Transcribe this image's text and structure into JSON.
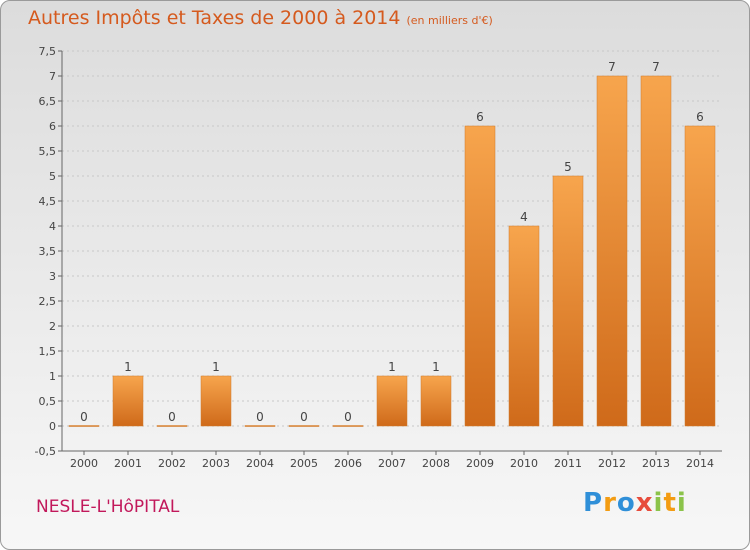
{
  "header": {
    "title": "Autres Impôts et Taxes de 2000 à 2014",
    "unit": "(en milliers d'€)"
  },
  "footer": {
    "commune": "NESLE-L'HôPITAL",
    "logo_letters": [
      "P",
      "r",
      "o",
      "x",
      "i",
      "t",
      "i"
    ],
    "logo_colors": [
      "#2f8fd8",
      "#f39c12",
      "#2f8fd8",
      "#e74c3c",
      "#8bc34a",
      "#f39c12",
      "#8bc34a"
    ]
  },
  "chart_data": {
    "type": "bar",
    "title": "Autres Impôts et Taxes de 2000 à 2014",
    "subtitle": "(en milliers d'€)",
    "categories": [
      "2000",
      "2001",
      "2002",
      "2003",
      "2004",
      "2005",
      "2006",
      "2007",
      "2008",
      "2009",
      "2010",
      "2011",
      "2012",
      "2013",
      "2014"
    ],
    "values": [
      0,
      1,
      0,
      1,
      0,
      0,
      0,
      1,
      1,
      6,
      4,
      5,
      7,
      7,
      6
    ],
    "data_labels": [
      "0",
      "1",
      "0",
      "1",
      "0",
      "0",
      "0",
      "1",
      "1",
      "6",
      "4",
      "5",
      "7",
      "7",
      "6"
    ],
    "ylim": [
      -0.5,
      7.5
    ],
    "yticks": [
      "-0,5",
      "0",
      "0,5",
      "1",
      "1,5",
      "2",
      "2,5",
      "3",
      "3,5",
      "4",
      "4,5",
      "5",
      "5,5",
      "6",
      "6,5",
      "7",
      "7,5"
    ],
    "grid": true,
    "bar_color": "#f0963c"
  }
}
